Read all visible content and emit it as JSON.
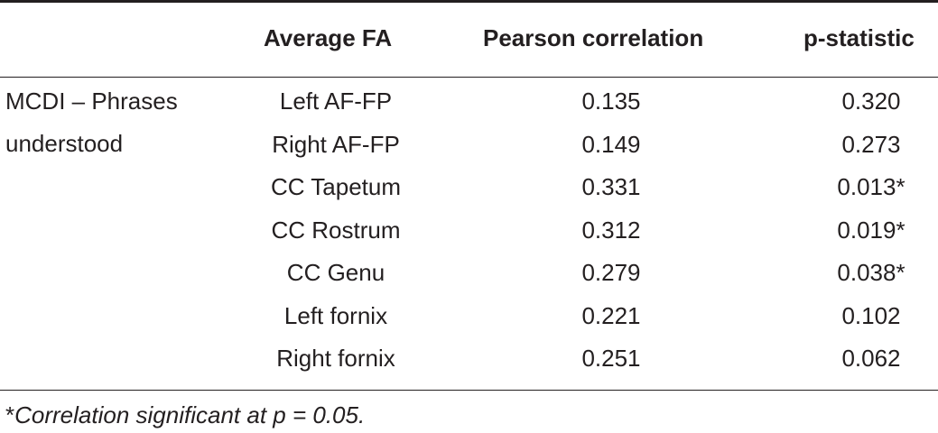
{
  "table": {
    "headers": {
      "label": "",
      "average_fa": "Average FA",
      "pearson": "Pearson correlation",
      "pstat": "p-statistic"
    },
    "row_label_line1": "MCDI – Phrases",
    "row_label_line2": "understood",
    "rows": [
      {
        "fa": "Left AF-FP",
        "pearson": "0.135",
        "pstat": "0.320"
      },
      {
        "fa": "Right AF-FP",
        "pearson": "0.149",
        "pstat": "0.273"
      },
      {
        "fa": "CC Tapetum",
        "pearson": "0.331",
        "pstat": "0.013*"
      },
      {
        "fa": "CC Rostrum",
        "pearson": "0.312",
        "pstat": "0.019*"
      },
      {
        "fa": "CC Genu",
        "pearson": "0.279",
        "pstat": "0.038*"
      },
      {
        "fa": "Left fornix",
        "pearson": "0.221",
        "pstat": "0.102"
      },
      {
        "fa": "Right fornix",
        "pearson": "0.251",
        "pstat": "0.062"
      }
    ]
  },
  "footnote": {
    "mark": "*",
    "text": "Correlation significant at p = 0.05."
  }
}
